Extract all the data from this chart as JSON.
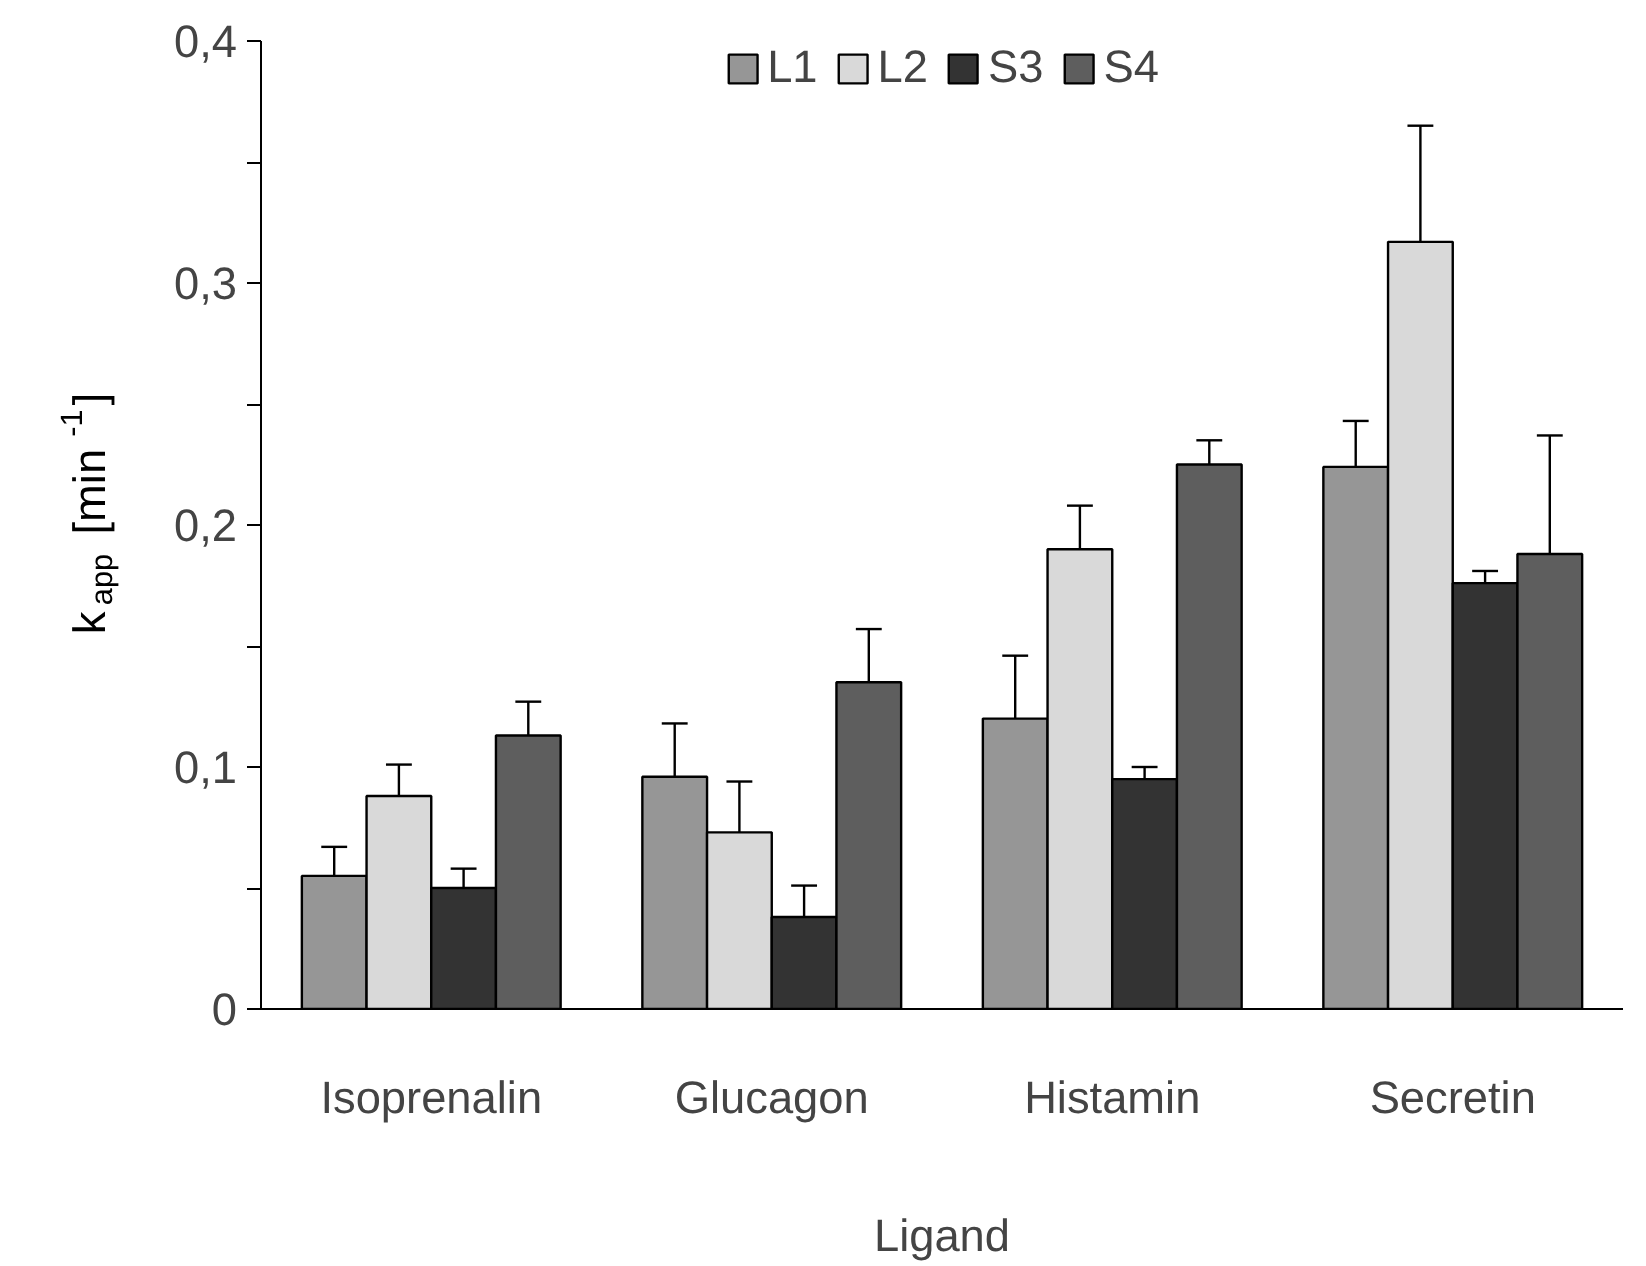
{
  "chart_data": {
    "type": "bar",
    "xlabel": "Ligand",
    "ylabel": "k$_{app}$ [min$^{-1}$]",
    "categories": [
      "Isoprenalin",
      "Glucagon",
      "Histamin",
      "Secretin"
    ],
    "series": [
      {
        "name": "L1",
        "color": "#969696",
        "values": [
          0.055,
          0.096,
          0.12,
          0.224
        ],
        "errors": [
          0.012,
          0.022,
          0.026,
          0.019
        ]
      },
      {
        "name": "L2",
        "color": "#d9d9d9",
        "values": [
          0.088,
          0.073,
          0.19,
          0.317
        ],
        "errors": [
          0.013,
          0.021,
          0.018,
          0.048
        ]
      },
      {
        "name": "S3",
        "color": "#333333",
        "values": [
          0.05,
          0.038,
          0.095,
          0.176
        ],
        "errors": [
          0.008,
          0.013,
          0.005,
          0.005
        ]
      },
      {
        "name": "S4",
        "color": "#5e5e5e",
        "values": [
          0.113,
          0.135,
          0.225,
          0.188
        ],
        "errors": [
          0.014,
          0.022,
          0.01,
          0.049
        ]
      }
    ],
    "ylim": [
      0,
      0.4
    ],
    "yticks": [
      0,
      {
        "value": 0.05,
        "label": null
      },
      {
        "value": 0.1,
        "label": "0,1"
      },
      {
        "value": 0.15,
        "label": null
      },
      {
        "value": 0.2,
        "label": "0,2"
      },
      {
        "value": 0.25,
        "label": null
      },
      {
        "value": 0.3,
        "label": "0,3"
      },
      {
        "value": 0.35,
        "label": null
      },
      {
        "value": 0.4,
        "label": "0,4"
      }
    ],
    "grid": false,
    "legend": "top"
  }
}
